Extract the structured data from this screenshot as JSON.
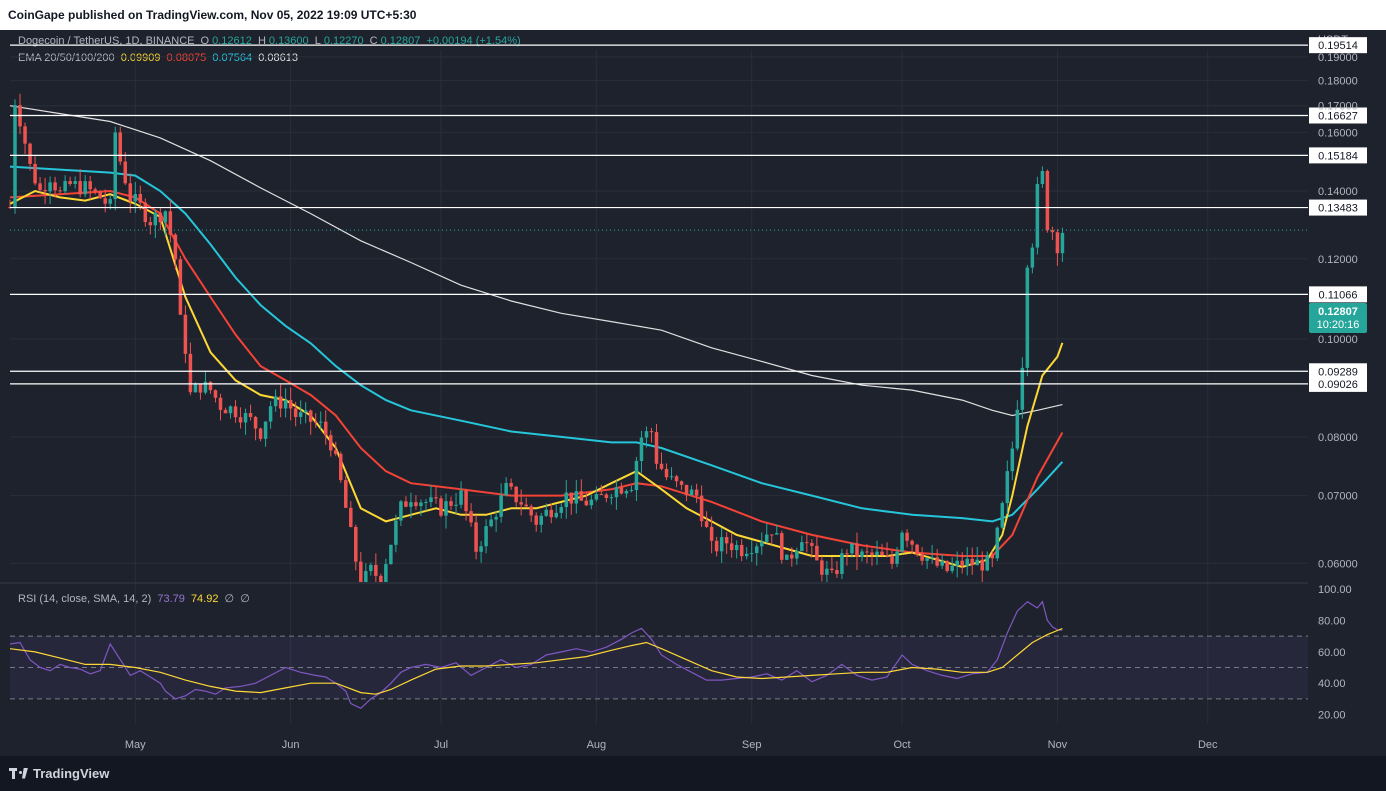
{
  "header": {
    "published": "CoinGape published on TradingView.com, Nov 05, 2022 19:09 UTC+5:30"
  },
  "footer": {
    "brand": "TradingView"
  },
  "legend": {
    "symbol": "Dogecoin / TetherUS, 1D, BINANCE",
    "open_label": "O",
    "open": "0.12612",
    "high_label": "H",
    "high": "0.13600",
    "low_label": "L",
    "low": "0.12270",
    "close_label": "C",
    "close": "0.12807",
    "change": "+0.00194 (+1.54%)",
    "ema_label": "EMA 20/50/100/200",
    "ema20": "0.09909",
    "ema50": "0.08075",
    "ema100": "0.07564",
    "ema200": "0.08613",
    "rsi_label": "RSI (14, close, SMA, 14, 2)",
    "rsi": "73.79",
    "rsi_sma": "74.92",
    "rsi_extra1": "∅",
    "rsi_extra2": "∅"
  },
  "axis": {
    "currency": "USDT"
  },
  "current_price": {
    "value": "0.12807",
    "countdown": "10:20:16"
  },
  "colors": {
    "background": "#1e222d",
    "up": "#26a69a",
    "down": "#ef5350",
    "ema20": "#fdd835",
    "ema50": "#f44336",
    "ema100": "#26c6da",
    "ema200": "#e0e0e0",
    "rsi": "#7e57c2",
    "rsi_sma": "#fdd835",
    "level": "#ffffff"
  },
  "chart_data": {
    "type": "candlestick",
    "x_tick_labels": [
      "May",
      "Jun",
      "Jul",
      "Aug",
      "Sep",
      "Oct",
      "Nov",
      "Dec"
    ],
    "x_tick_days": [
      25,
      56,
      86,
      117,
      148,
      178,
      209,
      239
    ],
    "y_ticks": [
      0.06,
      0.07,
      0.08,
      0.1,
      0.12,
      0.14,
      0.16,
      0.17,
      0.18,
      0.19
    ],
    "y_tick_labels": [
      "0.06000",
      "0.07000",
      "0.08000",
      "0.10000",
      "0.12000",
      "0.14000",
      "0.16000",
      "0.17000",
      "0.18000",
      "0.19000"
    ],
    "price_range": [
      0.0575,
      0.193
    ],
    "levels": [
      0.19514,
      0.16627,
      0.15184,
      0.13483,
      0.11066,
      0.09289,
      0.09026
    ],
    "level_labels": [
      "0.19514",
      "0.16627",
      "0.15184",
      "0.13483",
      "0.11066",
      "0.09289",
      "0.09026"
    ],
    "price_path": [
      [
        0,
        0.135
      ],
      [
        1,
        0.172
      ],
      [
        2,
        0.165
      ],
      [
        4,
        0.148
      ],
      [
        6,
        0.14
      ],
      [
        8,
        0.145
      ],
      [
        10,
        0.139
      ],
      [
        12,
        0.142
      ],
      [
        15,
        0.141
      ],
      [
        18,
        0.138
      ],
      [
        20,
        0.135
      ],
      [
        21,
        0.16
      ],
      [
        22,
        0.15
      ],
      [
        24,
        0.138
      ],
      [
        26,
        0.135
      ],
      [
        28,
        0.131
      ],
      [
        31,
        0.134
      ],
      [
        33,
        0.12
      ],
      [
        34,
        0.104
      ],
      [
        35,
        0.098
      ],
      [
        36,
        0.088
      ],
      [
        38,
        0.09
      ],
      [
        40,
        0.089
      ],
      [
        42,
        0.086
      ],
      [
        45,
        0.085
      ],
      [
        48,
        0.083
      ],
      [
        50,
        0.081
      ],
      [
        52,
        0.086
      ],
      [
        55,
        0.087
      ],
      [
        57,
        0.084
      ],
      [
        60,
        0.083
      ],
      [
        62,
        0.082
      ],
      [
        64,
        0.079
      ],
      [
        66,
        0.072
      ],
      [
        68,
        0.064
      ],
      [
        70,
        0.057
      ],
      [
        72,
        0.059
      ],
      [
        74,
        0.058
      ],
      [
        76,
        0.063
      ],
      [
        78,
        0.068
      ],
      [
        80,
        0.07
      ],
      [
        83,
        0.069
      ],
      [
        86,
        0.068
      ],
      [
        88,
        0.069
      ],
      [
        90,
        0.07
      ],
      [
        93,
        0.062
      ],
      [
        96,
        0.066
      ],
      [
        99,
        0.071
      ],
      [
        102,
        0.069
      ],
      [
        105,
        0.066
      ],
      [
        108,
        0.068
      ],
      [
        111,
        0.07
      ],
      [
        114,
        0.069
      ],
      [
        117,
        0.069
      ],
      [
        120,
        0.071
      ],
      [
        124,
        0.072
      ],
      [
        126,
        0.08
      ],
      [
        128,
        0.081
      ],
      [
        129,
        0.076
      ],
      [
        131,
        0.073
      ],
      [
        134,
        0.071
      ],
      [
        137,
        0.07
      ],
      [
        140,
        0.062
      ],
      [
        143,
        0.063
      ],
      [
        146,
        0.062
      ],
      [
        149,
        0.063
      ],
      [
        152,
        0.065
      ],
      [
        155,
        0.06
      ],
      [
        158,
        0.064
      ],
      [
        161,
        0.06
      ],
      [
        164,
        0.058
      ],
      [
        167,
        0.062
      ],
      [
        170,
        0.061
      ],
      [
        173,
        0.061
      ],
      [
        176,
        0.06
      ],
      [
        178,
        0.065
      ],
      [
        181,
        0.062
      ],
      [
        184,
        0.06
      ],
      [
        187,
        0.059
      ],
      [
        190,
        0.06
      ],
      [
        193,
        0.06
      ],
      [
        196,
        0.06
      ],
      [
        198,
        0.068
      ],
      [
        200,
        0.078
      ],
      [
        202,
        0.095
      ],
      [
        203,
        0.12
      ],
      [
        204,
        0.125
      ],
      [
        205,
        0.14
      ],
      [
        206,
        0.145
      ],
      [
        207,
        0.13
      ],
      [
        208,
        0.128
      ],
      [
        209,
        0.124
      ],
      [
        210,
        0.128
      ]
    ],
    "ema20_path": [
      [
        0,
        0.136
      ],
      [
        5,
        0.14
      ],
      [
        10,
        0.138
      ],
      [
        15,
        0.137
      ],
      [
        20,
        0.139
      ],
      [
        25,
        0.136
      ],
      [
        30,
        0.132
      ],
      [
        35,
        0.11
      ],
      [
        40,
        0.097
      ],
      [
        45,
        0.091
      ],
      [
        50,
        0.088
      ],
      [
        55,
        0.087
      ],
      [
        60,
        0.084
      ],
      [
        65,
        0.078
      ],
      [
        70,
        0.068
      ],
      [
        75,
        0.066
      ],
      [
        80,
        0.067
      ],
      [
        85,
        0.068
      ],
      [
        90,
        0.067
      ],
      [
        95,
        0.067
      ],
      [
        100,
        0.068
      ],
      [
        105,
        0.068
      ],
      [
        110,
        0.069
      ],
      [
        115,
        0.07
      ],
      [
        120,
        0.072
      ],
      [
        125,
        0.074
      ],
      [
        130,
        0.071
      ],
      [
        135,
        0.068
      ],
      [
        140,
        0.066
      ],
      [
        145,
        0.064
      ],
      [
        150,
        0.063
      ],
      [
        155,
        0.062
      ],
      [
        160,
        0.061
      ],
      [
        165,
        0.061
      ],
      [
        170,
        0.061
      ],
      [
        175,
        0.061
      ],
      [
        180,
        0.0615
      ],
      [
        185,
        0.0605
      ],
      [
        190,
        0.0595
      ],
      [
        195,
        0.0605
      ],
      [
        198,
        0.064
      ],
      [
        200,
        0.07
      ],
      [
        203,
        0.082
      ],
      [
        206,
        0.092
      ],
      [
        209,
        0.096
      ],
      [
        210,
        0.0991
      ]
    ],
    "ema50_path": [
      [
        0,
        0.138
      ],
      [
        10,
        0.139
      ],
      [
        20,
        0.14
      ],
      [
        25,
        0.138
      ],
      [
        30,
        0.133
      ],
      [
        35,
        0.12
      ],
      [
        40,
        0.11
      ],
      [
        45,
        0.101
      ],
      [
        50,
        0.094
      ],
      [
        55,
        0.091
      ],
      [
        60,
        0.088
      ],
      [
        65,
        0.084
      ],
      [
        70,
        0.078
      ],
      [
        75,
        0.074
      ],
      [
        80,
        0.072
      ],
      [
        90,
        0.071
      ],
      [
        100,
        0.07
      ],
      [
        110,
        0.07
      ],
      [
        120,
        0.071
      ],
      [
        125,
        0.072
      ],
      [
        130,
        0.0715
      ],
      [
        140,
        0.069
      ],
      [
        150,
        0.066
      ],
      [
        160,
        0.064
      ],
      [
        170,
        0.0625
      ],
      [
        180,
        0.0615
      ],
      [
        190,
        0.061
      ],
      [
        196,
        0.061
      ],
      [
        200,
        0.064
      ],
      [
        205,
        0.073
      ],
      [
        210,
        0.0808
      ]
    ],
    "ema100_path": [
      [
        0,
        0.148
      ],
      [
        10,
        0.147
      ],
      [
        20,
        0.146
      ],
      [
        25,
        0.145
      ],
      [
        30,
        0.14
      ],
      [
        35,
        0.133
      ],
      [
        40,
        0.124
      ],
      [
        45,
        0.115
      ],
      [
        50,
        0.108
      ],
      [
        55,
        0.103
      ],
      [
        60,
        0.099
      ],
      [
        65,
        0.094
      ],
      [
        70,
        0.09
      ],
      [
        75,
        0.087
      ],
      [
        80,
        0.085
      ],
      [
        90,
        0.083
      ],
      [
        100,
        0.081
      ],
      [
        110,
        0.08
      ],
      [
        120,
        0.079
      ],
      [
        125,
        0.079
      ],
      [
        130,
        0.078
      ],
      [
        140,
        0.075
      ],
      [
        150,
        0.072
      ],
      [
        160,
        0.07
      ],
      [
        170,
        0.068
      ],
      [
        180,
        0.067
      ],
      [
        190,
        0.0665
      ],
      [
        196,
        0.066
      ],
      [
        200,
        0.067
      ],
      [
        205,
        0.071
      ],
      [
        210,
        0.0756
      ]
    ],
    "ema200_path": [
      [
        0,
        0.17
      ],
      [
        10,
        0.167
      ],
      [
        20,
        0.164
      ],
      [
        30,
        0.158
      ],
      [
        40,
        0.15
      ],
      [
        50,
        0.141
      ],
      [
        60,
        0.133
      ],
      [
        70,
        0.125
      ],
      [
        80,
        0.119
      ],
      [
        90,
        0.113
      ],
      [
        100,
        0.109
      ],
      [
        110,
        0.106
      ],
      [
        120,
        0.104
      ],
      [
        130,
        0.102
      ],
      [
        140,
        0.098
      ],
      [
        150,
        0.095
      ],
      [
        160,
        0.092
      ],
      [
        170,
        0.09
      ],
      [
        180,
        0.089
      ],
      [
        190,
        0.087
      ],
      [
        196,
        0.085
      ],
      [
        200,
        0.084
      ],
      [
        205,
        0.085
      ],
      [
        210,
        0.0861
      ]
    ],
    "rsi_ticks": [
      20,
      40,
      60,
      80,
      100
    ],
    "rsi_tick_labels": [
      "20.00",
      "40.00",
      "60.00",
      "80.00",
      "100.00"
    ],
    "rsi_range": [
      14,
      102
    ],
    "rsi_bands": [
      30,
      50,
      70
    ],
    "rsi_path": [
      [
        0,
        65
      ],
      [
        2,
        66
      ],
      [
        4,
        55
      ],
      [
        6,
        50
      ],
      [
        8,
        48
      ],
      [
        10,
        52
      ],
      [
        12,
        50
      ],
      [
        14,
        49
      ],
      [
        16,
        46
      ],
      [
        18,
        48
      ],
      [
        20,
        65
      ],
      [
        22,
        55
      ],
      [
        24,
        45
      ],
      [
        26,
        48
      ],
      [
        28,
        44
      ],
      [
        30,
        40
      ],
      [
        31,
        35
      ],
      [
        33,
        30
      ],
      [
        35,
        32
      ],
      [
        37,
        36
      ],
      [
        39,
        35
      ],
      [
        41,
        33
      ],
      [
        43,
        37
      ],
      [
        46,
        38
      ],
      [
        49,
        40
      ],
      [
        52,
        45
      ],
      [
        55,
        50
      ],
      [
        58,
        47
      ],
      [
        61,
        45
      ],
      [
        63,
        44
      ],
      [
        65,
        40
      ],
      [
        67,
        35
      ],
      [
        68,
        27
      ],
      [
        70,
        24
      ],
      [
        72,
        30
      ],
      [
        74,
        34
      ],
      [
        76,
        40
      ],
      [
        78,
        47
      ],
      [
        80,
        50
      ],
      [
        83,
        52
      ],
      [
        86,
        50
      ],
      [
        89,
        53
      ],
      [
        92,
        45
      ],
      [
        95,
        50
      ],
      [
        98,
        55
      ],
      [
        101,
        50
      ],
      [
        104,
        52
      ],
      [
        107,
        58
      ],
      [
        110,
        60
      ],
      [
        113,
        62
      ],
      [
        116,
        60
      ],
      [
        119,
        63
      ],
      [
        122,
        68
      ],
      [
        124,
        72
      ],
      [
        126,
        75
      ],
      [
        128,
        68
      ],
      [
        130,
        58
      ],
      [
        133,
        52
      ],
      [
        136,
        47
      ],
      [
        139,
        42
      ],
      [
        142,
        42
      ],
      [
        145,
        43
      ],
      [
        148,
        44
      ],
      [
        151,
        46
      ],
      [
        154,
        42
      ],
      [
        157,
        48
      ],
      [
        160,
        41
      ],
      [
        163,
        45
      ],
      [
        166,
        52
      ],
      [
        169,
        45
      ],
      [
        172,
        42
      ],
      [
        175,
        44
      ],
      [
        178,
        58
      ],
      [
        180,
        52
      ],
      [
        183,
        48
      ],
      [
        186,
        45
      ],
      [
        189,
        43
      ],
      [
        192,
        46
      ],
      [
        195,
        47
      ],
      [
        197,
        55
      ],
      [
        199,
        72
      ],
      [
        201,
        86
      ],
      [
        203,
        92
      ],
      [
        205,
        88
      ],
      [
        206,
        92
      ],
      [
        207,
        80
      ],
      [
        208,
        76
      ],
      [
        209,
        74
      ],
      [
        210,
        73.8
      ]
    ],
    "rsi_sma_path": [
      [
        0,
        62
      ],
      [
        5,
        60
      ],
      [
        10,
        56
      ],
      [
        15,
        52
      ],
      [
        20,
        52
      ],
      [
        25,
        50
      ],
      [
        30,
        47
      ],
      [
        35,
        42
      ],
      [
        40,
        38
      ],
      [
        45,
        35
      ],
      [
        50,
        34
      ],
      [
        55,
        37
      ],
      [
        60,
        40
      ],
      [
        65,
        40
      ],
      [
        70,
        34
      ],
      [
        73,
        33
      ],
      [
        76,
        36
      ],
      [
        80,
        42
      ],
      [
        85,
        49
      ],
      [
        90,
        51
      ],
      [
        95,
        51
      ],
      [
        100,
        52
      ],
      [
        105,
        53
      ],
      [
        110,
        55
      ],
      [
        115,
        57
      ],
      [
        120,
        61
      ],
      [
        124,
        64
      ],
      [
        127,
        66
      ],
      [
        130,
        62
      ],
      [
        135,
        55
      ],
      [
        140,
        48
      ],
      [
        145,
        44
      ],
      [
        150,
        43
      ],
      [
        155,
        44
      ],
      [
        160,
        45
      ],
      [
        165,
        46
      ],
      [
        170,
        47
      ],
      [
        175,
        47
      ],
      [
        180,
        50
      ],
      [
        185,
        49
      ],
      [
        190,
        47
      ],
      [
        195,
        47
      ],
      [
        198,
        50
      ],
      [
        201,
        58
      ],
      [
        204,
        66
      ],
      [
        207,
        71
      ],
      [
        210,
        74.9
      ]
    ]
  }
}
